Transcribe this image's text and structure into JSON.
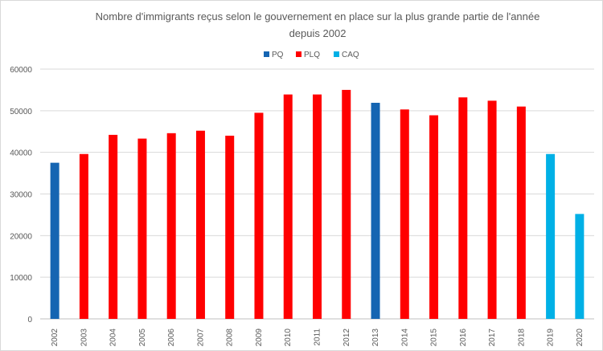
{
  "chart_data": {
    "type": "bar",
    "title": "Nombre d'immigrants reçus selon le gouvernement en place sur la plus grande partie de l'année depuis 2002",
    "title_lines": [
      "Nombre d'immigrants reçus selon le gouvernement en place sur la plus grande partie de l'année",
      "depuis 2002"
    ],
    "xlabel": "",
    "ylabel": "",
    "ylim": [
      0,
      60000
    ],
    "yticks": [
      0,
      10000,
      20000,
      30000,
      40000,
      50000,
      60000
    ],
    "grid": true,
    "legend_position": "top",
    "legend": [
      {
        "name": "PQ",
        "color": "#1565b2"
      },
      {
        "name": "PLQ",
        "color": "#ff0000"
      },
      {
        "name": "CAQ",
        "color": "#00b0e6"
      }
    ],
    "categories": [
      "2002",
      "2003",
      "2004",
      "2005",
      "2006",
      "2007",
      "2008",
      "2009",
      "2010",
      "2011",
      "2012",
      "2013",
      "2014",
      "2015",
      "2016",
      "2017",
      "2018",
      "2019",
      "2020"
    ],
    "values": [
      37500,
      39600,
      44200,
      43300,
      44600,
      45200,
      44000,
      49500,
      53900,
      53900,
      55000,
      51900,
      50300,
      48900,
      53200,
      52400,
      51000,
      39600,
      25200
    ],
    "series_of_bar": [
      "PQ",
      "PLQ",
      "PLQ",
      "PLQ",
      "PLQ",
      "PLQ",
      "PLQ",
      "PLQ",
      "PLQ",
      "PLQ",
      "PLQ",
      "PQ",
      "PLQ",
      "PLQ",
      "PLQ",
      "PLQ",
      "PLQ",
      "CAQ",
      "CAQ"
    ]
  }
}
